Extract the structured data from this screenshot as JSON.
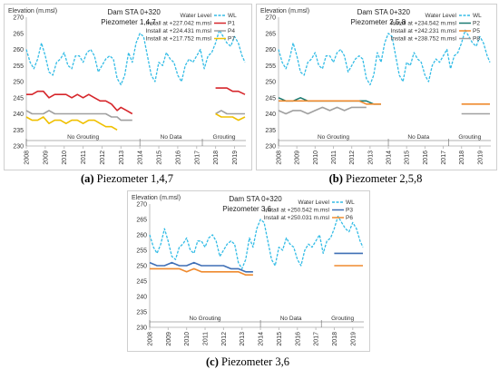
{
  "captions": [
    {
      "letter": "(a)",
      "text": "Piezometer 1,4,7"
    },
    {
      "letter": "(b)",
      "text": "Piezometer 2,5,8"
    },
    {
      "letter": "(c)",
      "text": "Piezometer 3,6"
    }
  ],
  "colors": {
    "wl": "#33bce6",
    "red": "#d6262b",
    "gray": "#a0a0a0",
    "yellow": "#f0c000",
    "teal": "#1a7a72",
    "orange": "#ef8a2e",
    "blue": "#3f6fb5",
    "axis": "#bfbfbf"
  },
  "chart_data": [
    {
      "type": "line",
      "title": "Dam  STA 0+320",
      "subtitle": "Piezometer 1,4,7",
      "ylabel": "Elevation  (m.msl)",
      "ylim": [
        230,
        270
      ],
      "yticks": [
        "230",
        "235",
        "240",
        "245",
        "250",
        "255",
        "260",
        "265",
        "270"
      ],
      "xticks": [
        "2008",
        "2009",
        "2010",
        "2011",
        "2012",
        "2013",
        "2014",
        "2015",
        "2016",
        "2017",
        "2018",
        "2019"
      ],
      "xlim": [
        2008,
        2019.6
      ],
      "regions": [
        {
          "label": "No Grouting",
          "from": 2008,
          "to": 2014
        },
        {
          "label": "No Data",
          "from": 2014,
          "to": 2017.3
        },
        {
          "label": "Grouting",
          "from": 2017.3,
          "to": 2019.6
        }
      ],
      "legend_header": "Water Level",
      "series": [
        {
          "name": "WL",
          "legend": "WL",
          "color": "wl",
          "dashed": true,
          "x": [
            2008.0,
            2008.2,
            2008.4,
            2008.6,
            2008.8,
            2009.0,
            2009.2,
            2009.4,
            2009.6,
            2009.8,
            2010.0,
            2010.2,
            2010.4,
            2010.6,
            2010.8,
            2011.0,
            2011.2,
            2011.4,
            2011.6,
            2011.8,
            2012.0,
            2012.2,
            2012.4,
            2012.6,
            2012.8,
            2013.0,
            2013.2,
            2013.4,
            2013.6,
            2013.8,
            2014.0,
            2014.2,
            2014.4,
            2014.6,
            2014.8,
            2015.0,
            2015.2,
            2015.4,
            2015.6,
            2015.8,
            2016.0,
            2016.2,
            2016.4,
            2016.6,
            2016.8,
            2017.0,
            2017.2,
            2017.4,
            2017.6,
            2017.8,
            2018.0,
            2018.2,
            2018.4,
            2018.6,
            2018.8,
            2019.0,
            2019.2,
            2019.4,
            2019.55
          ],
          "y": [
            260,
            256,
            254,
            257,
            262,
            258,
            253,
            252,
            256,
            257,
            259,
            255,
            254,
            258,
            258,
            256,
            259,
            260,
            258,
            253,
            255,
            257,
            258,
            257,
            251,
            249,
            252,
            259,
            256,
            262,
            265,
            264,
            258,
            252,
            250,
            256,
            255,
            259,
            257,
            256,
            252,
            250,
            255,
            257,
            256,
            258,
            260,
            254,
            258,
            259,
            262,
            266,
            264,
            262,
            261,
            264,
            262,
            258,
            256
          ]
        },
        {
          "name": "P1",
          "legend": "Install at +227.042 m.msl",
          "color": "red",
          "dashed": false,
          "x": [
            2008.0,
            2008.3,
            2008.6,
            2008.9,
            2009.2,
            2009.5,
            2009.8,
            2010.1,
            2010.4,
            2010.7,
            2011.0,
            2011.3,
            2011.6,
            2011.9,
            2012.2,
            2012.5,
            2012.8,
            2013.0,
            2013.3,
            2013.6
          ],
          "y": [
            246,
            246,
            247,
            247,
            245,
            246,
            246,
            246,
            245,
            246,
            245,
            246,
            245,
            244,
            244,
            243,
            241,
            242,
            241,
            240
          ]
        },
        {
          "name": "P4",
          "legend": "Install at +224.431 m.msl",
          "color": "gray",
          "dashed": false,
          "x": [
            2008.0,
            2008.3,
            2008.6,
            2008.9,
            2009.2,
            2009.5,
            2009.8,
            2010.1,
            2010.4,
            2010.7,
            2011.0,
            2011.3,
            2011.6,
            2011.9,
            2012.2,
            2012.5,
            2012.8,
            2013.0,
            2013.3,
            2013.6
          ],
          "y": [
            241,
            240,
            240,
            240,
            241,
            240,
            240,
            240,
            240,
            240,
            240,
            240,
            240,
            240,
            240,
            239,
            239,
            238,
            238,
            238
          ]
        },
        {
          "name": "P7",
          "legend": "Install at +217.752 m.msl",
          "color": "yellow",
          "dashed": false,
          "x": [
            2008.0,
            2008.3,
            2008.6,
            2008.9,
            2009.2,
            2009.5,
            2009.8,
            2010.1,
            2010.4,
            2010.7,
            2011.0,
            2011.3,
            2011.6,
            2011.9,
            2012.2,
            2012.5,
            2012.8
          ],
          "y": [
            239,
            238,
            238,
            239,
            237,
            238,
            238,
            237,
            238,
            238,
            237,
            238,
            238,
            237,
            236,
            236,
            235
          ]
        },
        {
          "name": "P1b",
          "legend": "",
          "color": "red",
          "dashed": false,
          "x": [
            2018.0,
            2018.3,
            2018.6,
            2018.9,
            2019.2,
            2019.55
          ],
          "y": [
            248,
            248,
            248,
            247,
            247,
            246
          ]
        },
        {
          "name": "P4b",
          "legend": "",
          "color": "gray",
          "dashed": false,
          "x": [
            2018.0,
            2018.3,
            2018.6,
            2018.9,
            2019.2,
            2019.55
          ],
          "y": [
            240,
            241,
            240,
            240,
            240,
            240
          ]
        },
        {
          "name": "P7b",
          "legend": "",
          "color": "yellow",
          "dashed": false,
          "x": [
            2018.0,
            2018.3,
            2018.6,
            2018.9,
            2019.2,
            2019.55
          ],
          "y": [
            240,
            239,
            239,
            239,
            238,
            239
          ]
        }
      ]
    },
    {
      "type": "line",
      "title": "Dam  STA 0+320",
      "subtitle": "Piezometer 2,5,8",
      "ylabel": "Elevation  (m.msl)",
      "ylim": [
        230,
        270
      ],
      "yticks": [
        "230",
        "235",
        "240",
        "245",
        "250",
        "255",
        "260",
        "265",
        "270"
      ],
      "xticks": [
        "2008",
        "2009",
        "2010",
        "2011",
        "2012",
        "2013",
        "2014",
        "2015",
        "2016",
        "2017",
        "2018",
        "2019"
      ],
      "xlim": [
        2008,
        2019.6
      ],
      "regions": [
        {
          "label": "No Grouting",
          "from": 2008,
          "to": 2014
        },
        {
          "label": "No Data",
          "from": 2014,
          "to": 2017.3
        },
        {
          "label": "Grouting",
          "from": 2017.3,
          "to": 2019.6
        }
      ],
      "legend_header": "Water Level",
      "series": [
        {
          "name": "WL",
          "legend": "WL",
          "color": "wl",
          "dashed": true,
          "x": [
            2008.0,
            2008.2,
            2008.4,
            2008.6,
            2008.8,
            2009.0,
            2009.2,
            2009.4,
            2009.6,
            2009.8,
            2010.0,
            2010.2,
            2010.4,
            2010.6,
            2010.8,
            2011.0,
            2011.2,
            2011.4,
            2011.6,
            2011.8,
            2012.0,
            2012.2,
            2012.4,
            2012.6,
            2012.8,
            2013.0,
            2013.2,
            2013.4,
            2013.6,
            2013.8,
            2014.0,
            2014.2,
            2014.4,
            2014.6,
            2014.8,
            2015.0,
            2015.2,
            2015.4,
            2015.6,
            2015.8,
            2016.0,
            2016.2,
            2016.4,
            2016.6,
            2016.8,
            2017.0,
            2017.2,
            2017.4,
            2017.6,
            2017.8,
            2018.0,
            2018.2,
            2018.4,
            2018.6,
            2018.8,
            2019.0,
            2019.2,
            2019.4,
            2019.55
          ],
          "y": [
            260,
            256,
            254,
            257,
            262,
            258,
            253,
            252,
            256,
            257,
            259,
            255,
            254,
            258,
            258,
            256,
            259,
            260,
            258,
            253,
            255,
            257,
            258,
            257,
            251,
            249,
            252,
            259,
            256,
            262,
            265,
            264,
            258,
            252,
            250,
            256,
            255,
            259,
            257,
            256,
            252,
            250,
            255,
            257,
            256,
            258,
            260,
            254,
            258,
            259,
            262,
            266,
            264,
            262,
            261,
            264,
            262,
            258,
            256
          ]
        },
        {
          "name": "P2",
          "legend": "Install at +234.542 m.msl",
          "color": "teal",
          "dashed": false,
          "x": [
            2008.0,
            2008.4,
            2008.8,
            2009.2,
            2009.6,
            2010.0,
            2010.4,
            2010.8,
            2011.2,
            2011.6,
            2012.0,
            2012.4,
            2012.8,
            2013.2,
            2013.6
          ],
          "y": [
            245,
            244,
            244,
            245,
            244,
            244,
            244,
            244,
            244,
            244,
            244,
            244,
            244,
            243,
            243
          ]
        },
        {
          "name": "P5",
          "legend": "Install at +242.231 m.msl",
          "color": "orange",
          "dashed": false,
          "x": [
            2008.0,
            2008.4,
            2008.8,
            2009.2,
            2009.6,
            2010.0,
            2010.4,
            2010.8,
            2011.2,
            2011.6,
            2012.0,
            2012.4,
            2012.8,
            2013.2,
            2013.6
          ],
          "y": [
            244,
            244,
            244,
            244,
            244,
            244,
            244,
            244,
            244,
            244,
            244,
            244,
            243,
            243,
            243
          ]
        },
        {
          "name": "P8",
          "legend": "Install at +238.752 m.msl",
          "color": "gray",
          "dashed": false,
          "x": [
            2008.0,
            2008.4,
            2008.8,
            2009.2,
            2009.6,
            2010.0,
            2010.4,
            2010.8,
            2011.2,
            2011.6,
            2012.0,
            2012.4,
            2012.8
          ],
          "y": [
            241,
            240,
            241,
            241,
            240,
            241,
            242,
            241,
            242,
            241,
            242,
            242,
            242
          ]
        },
        {
          "name": "P5b",
          "legend": "",
          "color": "orange",
          "dashed": false,
          "x": [
            2018.0,
            2018.5,
            2019.0,
            2019.55
          ],
          "y": [
            243,
            243,
            243,
            243
          ]
        },
        {
          "name": "P8b",
          "legend": "",
          "color": "gray",
          "dashed": false,
          "x": [
            2018.0,
            2018.5,
            2019.0,
            2019.55
          ],
          "y": [
            240,
            240,
            240,
            240
          ]
        }
      ]
    },
    {
      "type": "line",
      "title": "Dam  STA 0+320",
      "subtitle": "Piezometer 3,6",
      "ylabel": "Elevation  (m.msl)",
      "ylim": [
        230,
        270
      ],
      "yticks": [
        "230",
        "235",
        "240",
        "245",
        "250",
        "255",
        "260",
        "265",
        "270"
      ],
      "xticks": [
        "2008",
        "2009",
        "2010",
        "2011",
        "2012",
        "2013",
        "2014",
        "2015",
        "2016",
        "2017",
        "2018",
        "2019"
      ],
      "xlim": [
        2008,
        2019.6
      ],
      "regions": [
        {
          "label": "No Grouting",
          "from": 2008,
          "to": 2014
        },
        {
          "label": "No Data",
          "from": 2014,
          "to": 2017.3
        },
        {
          "label": "Grouting",
          "from": 2017.3,
          "to": 2019.6
        }
      ],
      "legend_header": "Water Level",
      "series": [
        {
          "name": "WL",
          "legend": "WL",
          "color": "wl",
          "dashed": true,
          "x": [
            2008.0,
            2008.2,
            2008.4,
            2008.6,
            2008.8,
            2009.0,
            2009.2,
            2009.4,
            2009.6,
            2009.8,
            2010.0,
            2010.2,
            2010.4,
            2010.6,
            2010.8,
            2011.0,
            2011.2,
            2011.4,
            2011.6,
            2011.8,
            2012.0,
            2012.2,
            2012.4,
            2012.6,
            2012.8,
            2013.0,
            2013.2,
            2013.4,
            2013.6,
            2013.8,
            2014.0,
            2014.2,
            2014.4,
            2014.6,
            2014.8,
            2015.0,
            2015.2,
            2015.4,
            2015.6,
            2015.8,
            2016.0,
            2016.2,
            2016.4,
            2016.6,
            2016.8,
            2017.0,
            2017.2,
            2017.4,
            2017.6,
            2017.8,
            2018.0,
            2018.2,
            2018.4,
            2018.6,
            2018.8,
            2019.0,
            2019.2,
            2019.4,
            2019.55
          ],
          "y": [
            260,
            256,
            254,
            257,
            262,
            258,
            253,
            252,
            256,
            257,
            259,
            255,
            254,
            258,
            258,
            256,
            259,
            260,
            258,
            253,
            255,
            257,
            258,
            257,
            251,
            249,
            252,
            259,
            256,
            262,
            265,
            264,
            258,
            252,
            250,
            256,
            255,
            259,
            257,
            256,
            252,
            250,
            255,
            257,
            256,
            258,
            260,
            254,
            258,
            259,
            262,
            266,
            264,
            262,
            261,
            264,
            262,
            258,
            256
          ]
        },
        {
          "name": "P3",
          "legend": "Install at +250.542 m.msl",
          "color": "blue",
          "dashed": false,
          "x": [
            2008.0,
            2008.4,
            2008.8,
            2009.2,
            2009.6,
            2010.0,
            2010.4,
            2010.8,
            2011.2,
            2011.6,
            2012.0,
            2012.4,
            2012.8,
            2013.2,
            2013.6
          ],
          "y": [
            251,
            250,
            250,
            251,
            250,
            250,
            251,
            250,
            250,
            250,
            250,
            249,
            249,
            248,
            248
          ]
        },
        {
          "name": "P6",
          "legend": "Install at +250.031 m.msl",
          "color": "orange",
          "dashed": false,
          "x": [
            2008.0,
            2008.4,
            2008.8,
            2009.2,
            2009.6,
            2010.0,
            2010.4,
            2010.8,
            2011.2,
            2011.6,
            2012.0,
            2012.4,
            2012.8,
            2013.2,
            2013.6
          ],
          "y": [
            249,
            249,
            249,
            249,
            249,
            248,
            249,
            248,
            248,
            248,
            248,
            248,
            248,
            247,
            247
          ]
        },
        {
          "name": "P3b",
          "legend": "",
          "color": "blue",
          "dashed": false,
          "x": [
            2018.0,
            2018.5,
            2019.0,
            2019.55
          ],
          "y": [
            254,
            254,
            254,
            254
          ]
        },
        {
          "name": "P6b",
          "legend": "",
          "color": "orange",
          "dashed": false,
          "x": [
            2018.0,
            2018.5,
            2019.0,
            2019.55
          ],
          "y": [
            250,
            250,
            250,
            250
          ]
        }
      ]
    }
  ]
}
